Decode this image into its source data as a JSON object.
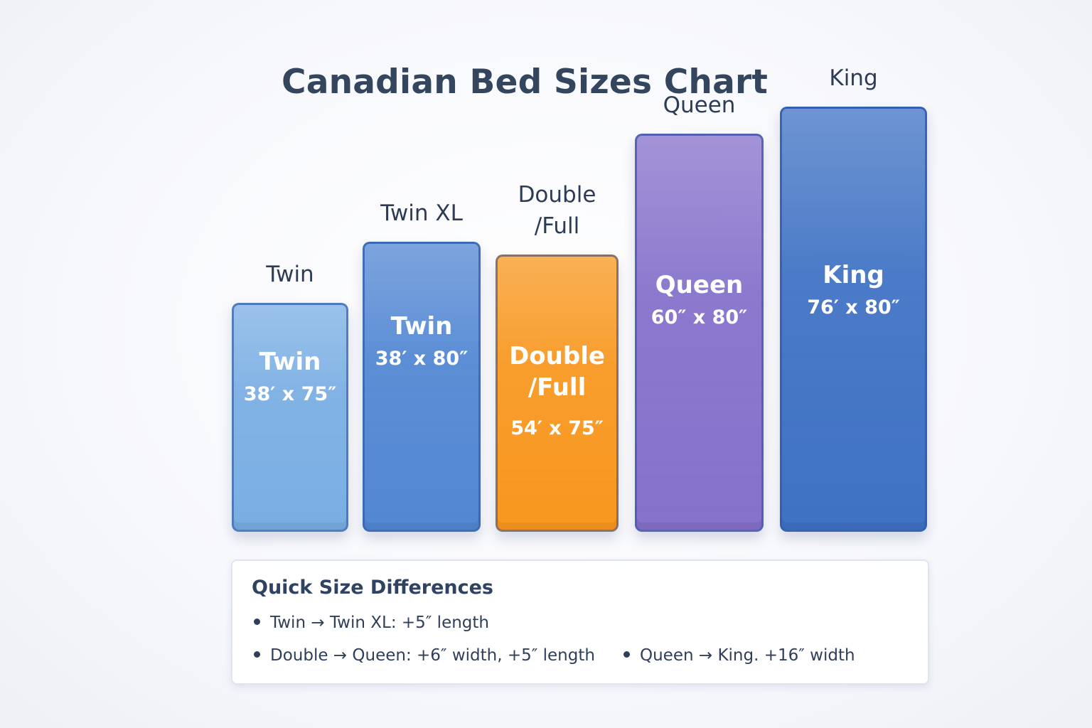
{
  "chart_data": {
    "type": "bar",
    "title": "Canadian Bed Sizes Chart",
    "categories": [
      "Twin",
      "Twin XL",
      "Double\n/Full",
      "Queen",
      "King"
    ],
    "bar_names": [
      "Twin",
      "Twin",
      "Double\n/Full",
      "Queen",
      "King"
    ],
    "dimension_labels": [
      "38′ x 75″",
      "38′ x 80″",
      "54′ x 75″",
      "60″ x 80″",
      "76′ x 80″"
    ],
    "width_in": [
      38,
      38,
      54,
      60,
      76
    ],
    "length_in": [
      75,
      80,
      75,
      80,
      80
    ],
    "colors": [
      "#7aaee3",
      "#5287d3",
      "#f8971f",
      "#8571cb",
      "#3f72c4"
    ],
    "xlabel": "",
    "ylabel": "",
    "grid": false,
    "legend": "none"
  },
  "notes": {
    "title": "Quick Size Differences",
    "items": [
      "Twin → Twin XL: +5″ length",
      "Double → Queen: +6″ width, +5″ length",
      "Queen → King. +16″ width"
    ]
  }
}
